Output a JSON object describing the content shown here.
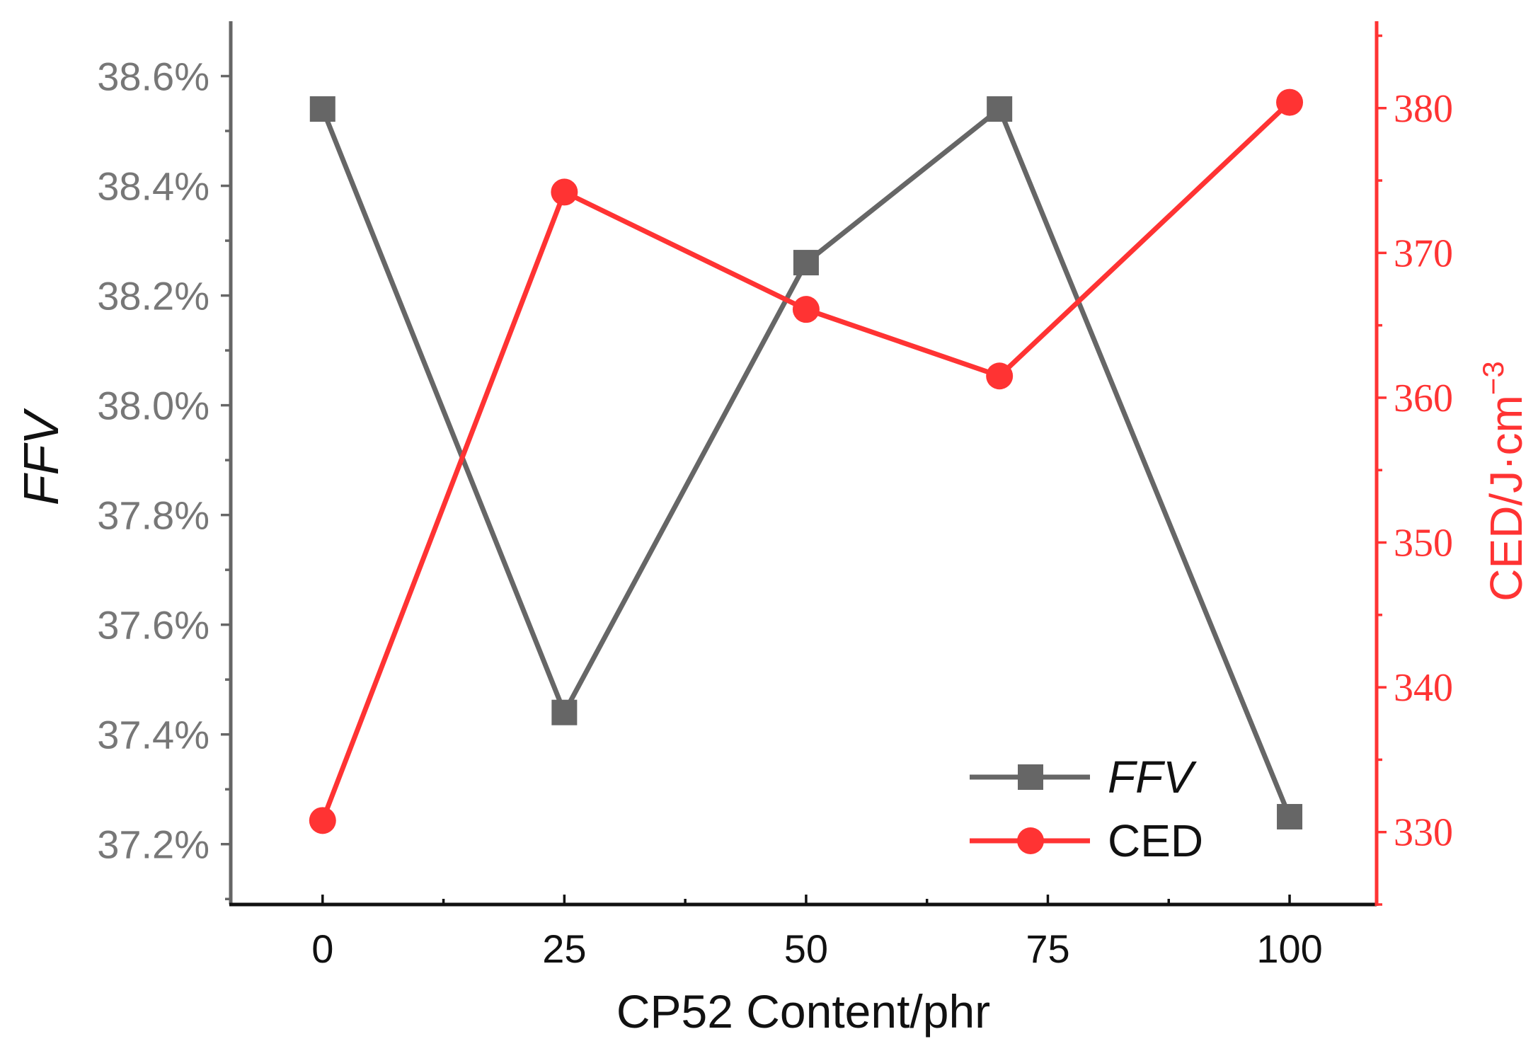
{
  "chart_data": {
    "type": "line",
    "x": [
      0,
      25,
      50,
      70,
      100
    ],
    "xlabel": "CP52 Content/phr",
    "xlim": [
      -9.5,
      109
    ],
    "xticks": [
      "0",
      "25",
      "50",
      "75",
      "100"
    ],
    "ylabel": "FFV",
    "ylim": [
      37.09,
      38.7
    ],
    "yticks": [
      "37.2%",
      "37.4%",
      "37.6%",
      "37.8%",
      "38.0%",
      "38.2%",
      "38.4%",
      "38.6%"
    ],
    "y2label": "CED/J·cm",
    "y2label_sup": "−3",
    "y2lim": [
      325,
      386
    ],
    "y2ticks": [
      "330",
      "340",
      "350",
      "360",
      "370",
      "380"
    ],
    "series": [
      {
        "name": "FFV",
        "axis": "left",
        "marker": "square",
        "color": "#666666",
        "values": [
          38.54,
          37.44,
          38.26,
          38.54,
          37.25
        ]
      },
      {
        "name": "CED",
        "axis": "right",
        "marker": "circle",
        "color": "#ff3333",
        "values": [
          330.8,
          374.2,
          366.1,
          361.5,
          380.4
        ]
      }
    ],
    "legend": {
      "position": "bottom-right",
      "entries": [
        "FFV",
        "CED"
      ]
    },
    "colors": {
      "left_axis": "#666666",
      "right_axis": "#ff3333",
      "bottom_axis": "#111111"
    }
  }
}
